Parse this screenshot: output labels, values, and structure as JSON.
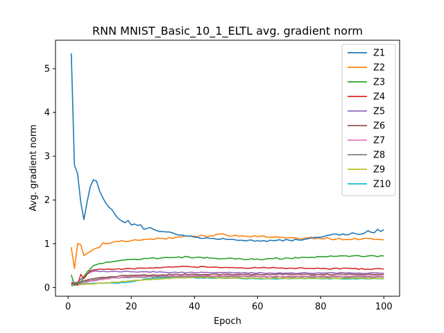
{
  "chart_data": {
    "type": "line",
    "title": "RNN MNIST_Basic_10_1_ELTL avg. gradient norm",
    "xlabel": "Epoch",
    "ylabel": "Avg. gradient norm",
    "xlim": [
      -4,
      105
    ],
    "ylim": [
      -0.2,
      5.65
    ],
    "xticks": [
      0,
      20,
      40,
      60,
      80,
      100
    ],
    "yticks": [
      0,
      1,
      2,
      3,
      4,
      5
    ],
    "grid": false,
    "legend_position": "top-right",
    "x_start": 1,
    "x_end": 100,
    "series": [
      {
        "name": "Z1",
        "color": "#1f77b4",
        "keypoints": [
          [
            1,
            5.35
          ],
          [
            2,
            2.8
          ],
          [
            3,
            2.6
          ],
          [
            4,
            1.95
          ],
          [
            5,
            1.55
          ],
          [
            6,
            1.95
          ],
          [
            7,
            2.3
          ],
          [
            8,
            2.46
          ],
          [
            9,
            2.43
          ],
          [
            10,
            2.2
          ],
          [
            11,
            2.05
          ],
          [
            12,
            1.92
          ],
          [
            13,
            1.83
          ],
          [
            14,
            1.77
          ],
          [
            15,
            1.65
          ],
          [
            16,
            1.57
          ],
          [
            17,
            1.52
          ],
          [
            18,
            1.48
          ],
          [
            19,
            1.53
          ],
          [
            20,
            1.43
          ],
          [
            21,
            1.45
          ],
          [
            22,
            1.42
          ],
          [
            23,
            1.43
          ],
          [
            24,
            1.33
          ],
          [
            25,
            1.35
          ],
          [
            26,
            1.37
          ],
          [
            27,
            1.33
          ],
          [
            28,
            1.3
          ],
          [
            30,
            1.28
          ],
          [
            33,
            1.25
          ],
          [
            36,
            1.2
          ],
          [
            38,
            1.17
          ],
          [
            40,
            1.15
          ],
          [
            45,
            1.12
          ],
          [
            50,
            1.1
          ],
          [
            55,
            1.08
          ],
          [
            60,
            1.07
          ],
          [
            65,
            1.07
          ],
          [
            70,
            1.08
          ],
          [
            75,
            1.1
          ],
          [
            80,
            1.15
          ],
          [
            85,
            1.22
          ],
          [
            88,
            1.2
          ],
          [
            90,
            1.25
          ],
          [
            93,
            1.22
          ],
          [
            95,
            1.3
          ],
          [
            97,
            1.25
          ],
          [
            98,
            1.33
          ],
          [
            99,
            1.28
          ],
          [
            100,
            1.32
          ]
        ],
        "jitter": 0.02
      },
      {
        "name": "Z2",
        "color": "#ff7f0e",
        "keypoints": [
          [
            1,
            0.92
          ],
          [
            2,
            0.43
          ],
          [
            3,
            1.0
          ],
          [
            4,
            0.98
          ],
          [
            5,
            0.73
          ],
          [
            6,
            0.78
          ],
          [
            7,
            0.82
          ],
          [
            8,
            0.87
          ],
          [
            9,
            0.9
          ],
          [
            10,
            0.92
          ],
          [
            11,
            1.02
          ],
          [
            12,
            1.0
          ],
          [
            14,
            1.03
          ],
          [
            16,
            1.05
          ],
          [
            18,
            1.05
          ],
          [
            20,
            1.07
          ],
          [
            25,
            1.1
          ],
          [
            30,
            1.12
          ],
          [
            35,
            1.15
          ],
          [
            40,
            1.17
          ],
          [
            45,
            1.18
          ],
          [
            48,
            1.22
          ],
          [
            50,
            1.2
          ],
          [
            55,
            1.18
          ],
          [
            60,
            1.16
          ],
          [
            65,
            1.15
          ],
          [
            70,
            1.14
          ],
          [
            75,
            1.13
          ],
          [
            80,
            1.12
          ],
          [
            85,
            1.11
          ],
          [
            90,
            1.1
          ],
          [
            95,
            1.12
          ],
          [
            100,
            1.09
          ]
        ],
        "jitter": 0.025
      },
      {
        "name": "Z3",
        "color": "#2ca02c",
        "keypoints": [
          [
            1,
            0.29
          ],
          [
            2,
            0.05
          ],
          [
            3,
            0.1
          ],
          [
            4,
            0.12
          ],
          [
            5,
            0.25
          ],
          [
            6,
            0.35
          ],
          [
            7,
            0.42
          ],
          [
            8,
            0.5
          ],
          [
            10,
            0.55
          ],
          [
            12,
            0.58
          ],
          [
            15,
            0.6
          ],
          [
            18,
            0.63
          ],
          [
            20,
            0.64
          ],
          [
            25,
            0.66
          ],
          [
            30,
            0.68
          ],
          [
            35,
            0.7
          ],
          [
            40,
            0.68
          ],
          [
            45,
            0.67
          ],
          [
            50,
            0.66
          ],
          [
            55,
            0.65
          ],
          [
            60,
            0.65
          ],
          [
            65,
            0.66
          ],
          [
            70,
            0.67
          ],
          [
            75,
            0.69
          ],
          [
            80,
            0.7
          ],
          [
            85,
            0.71
          ],
          [
            90,
            0.72
          ],
          [
            95,
            0.72
          ],
          [
            100,
            0.72
          ]
        ],
        "jitter": 0.018
      },
      {
        "name": "Z4",
        "color": "#d62728",
        "keypoints": [
          [
            1,
            0.12
          ],
          [
            2,
            0.08
          ],
          [
            3,
            0.05
          ],
          [
            4,
            0.3
          ],
          [
            5,
            0.2
          ],
          [
            6,
            0.3
          ],
          [
            7,
            0.38
          ],
          [
            8,
            0.4
          ],
          [
            10,
            0.42
          ],
          [
            15,
            0.42
          ],
          [
            20,
            0.43
          ],
          [
            25,
            0.44
          ],
          [
            30,
            0.46
          ],
          [
            35,
            0.47
          ],
          [
            40,
            0.47
          ],
          [
            45,
            0.46
          ],
          [
            50,
            0.46
          ],
          [
            55,
            0.45
          ],
          [
            60,
            0.45
          ],
          [
            70,
            0.44
          ],
          [
            80,
            0.43
          ],
          [
            90,
            0.43
          ],
          [
            100,
            0.42
          ]
        ],
        "jitter": 0.015
      },
      {
        "name": "Z5",
        "color": "#9467bd",
        "keypoints": [
          [
            1,
            0.1
          ],
          [
            3,
            0.12
          ],
          [
            5,
            0.25
          ],
          [
            7,
            0.35
          ],
          [
            9,
            0.38
          ],
          [
            12,
            0.36
          ],
          [
            15,
            0.37
          ],
          [
            20,
            0.36
          ],
          [
            25,
            0.36
          ],
          [
            30,
            0.35
          ],
          [
            40,
            0.34
          ],
          [
            50,
            0.34
          ],
          [
            60,
            0.33
          ],
          [
            70,
            0.33
          ],
          [
            80,
            0.33
          ],
          [
            90,
            0.33
          ],
          [
            100,
            0.33
          ]
        ],
        "jitter": 0.012
      },
      {
        "name": "Z6",
        "color": "#8c564b",
        "keypoints": [
          [
            1,
            0.08
          ],
          [
            3,
            0.1
          ],
          [
            5,
            0.15
          ],
          [
            8,
            0.2
          ],
          [
            12,
            0.23
          ],
          [
            16,
            0.26
          ],
          [
            20,
            0.28
          ],
          [
            25,
            0.28
          ],
          [
            30,
            0.29
          ],
          [
            40,
            0.3
          ],
          [
            50,
            0.3
          ],
          [
            60,
            0.3
          ],
          [
            70,
            0.3
          ],
          [
            80,
            0.3
          ],
          [
            90,
            0.3
          ],
          [
            100,
            0.3
          ]
        ],
        "jitter": 0.012
      },
      {
        "name": "Z7",
        "color": "#e377c2",
        "keypoints": [
          [
            1,
            0.06
          ],
          [
            3,
            0.08
          ],
          [
            6,
            0.12
          ],
          [
            10,
            0.18
          ],
          [
            15,
            0.22
          ],
          [
            20,
            0.25
          ],
          [
            25,
            0.26
          ],
          [
            30,
            0.27
          ],
          [
            40,
            0.27
          ],
          [
            50,
            0.27
          ],
          [
            60,
            0.26
          ],
          [
            70,
            0.26
          ],
          [
            80,
            0.26
          ],
          [
            90,
            0.26
          ],
          [
            100,
            0.26
          ]
        ],
        "jitter": 0.012
      },
      {
        "name": "Z8",
        "color": "#7f7f7f",
        "keypoints": [
          [
            1,
            0.05
          ],
          [
            3,
            0.08
          ],
          [
            6,
            0.15
          ],
          [
            10,
            0.2
          ],
          [
            15,
            0.22
          ],
          [
            20,
            0.23
          ],
          [
            25,
            0.24
          ],
          [
            30,
            0.25
          ],
          [
            40,
            0.25
          ],
          [
            50,
            0.25
          ],
          [
            60,
            0.25
          ],
          [
            70,
            0.24
          ],
          [
            80,
            0.24
          ],
          [
            90,
            0.24
          ],
          [
            100,
            0.24
          ]
        ],
        "jitter": 0.01
      },
      {
        "name": "Z9",
        "color": "#bcbd22",
        "keypoints": [
          [
            1,
            0.04
          ],
          [
            3,
            0.06
          ],
          [
            6,
            0.08
          ],
          [
            10,
            0.1
          ],
          [
            15,
            0.12
          ],
          [
            20,
            0.15
          ],
          [
            25,
            0.18
          ],
          [
            30,
            0.2
          ],
          [
            35,
            0.22
          ],
          [
            40,
            0.23
          ],
          [
            50,
            0.22
          ],
          [
            60,
            0.21
          ],
          [
            70,
            0.21
          ],
          [
            80,
            0.21
          ],
          [
            90,
            0.21
          ],
          [
            100,
            0.21
          ]
        ],
        "jitter": 0.01
      },
      {
        "name": "Z10",
        "color": "#17becf",
        "keypoints": [
          [
            1,
            0.03
          ],
          [
            3,
            0.07
          ],
          [
            6,
            0.09
          ],
          [
            10,
            0.1
          ],
          [
            15,
            0.1
          ],
          [
            18,
            0.11
          ],
          [
            20,
            0.13
          ],
          [
            22,
            0.16
          ],
          [
            25,
            0.2
          ],
          [
            30,
            0.22
          ],
          [
            35,
            0.23
          ],
          [
            40,
            0.22
          ],
          [
            50,
            0.21
          ],
          [
            60,
            0.2
          ],
          [
            70,
            0.2
          ],
          [
            80,
            0.2
          ],
          [
            90,
            0.2
          ],
          [
            100,
            0.2
          ]
        ],
        "jitter": 0.008
      }
    ]
  }
}
